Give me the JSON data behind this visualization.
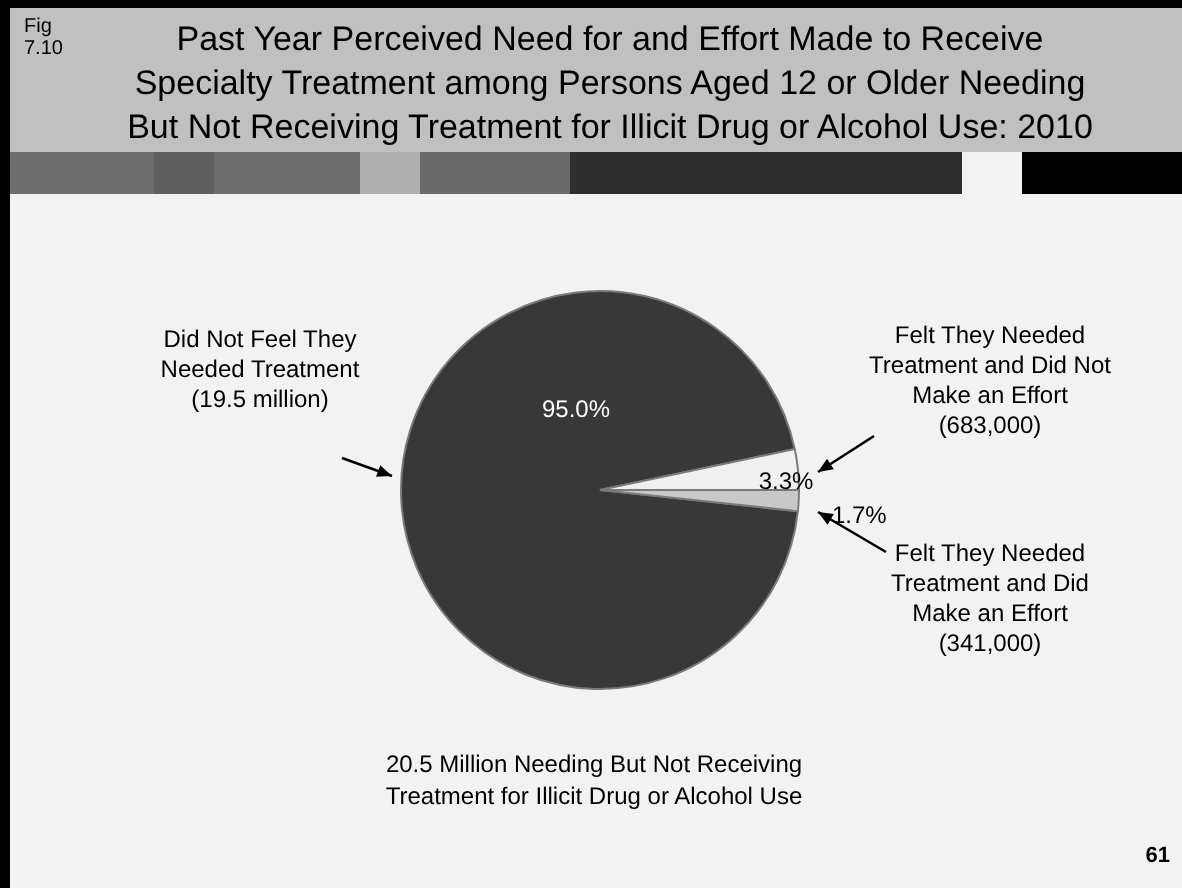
{
  "chart_data": {
    "type": "pie",
    "title": "Past Year Perceived Need for and Effort Made to Receive Specialty Treatment among Persons Aged 12 or Older Needing But Not Receiving Treatment for Illicit Drug or Alcohol Use: 2010",
    "categories": [
      "Did Not Feel They Needed Treatment (19.5 million)",
      "Felt They Needed Treatment and Did Not Make an Effort (683,000)",
      "Felt They Needed Treatment and Did Make an Effort (341,000)"
    ],
    "values": [
      95.0,
      3.3,
      1.7
    ],
    "colors": [
      "#383838",
      "#f0f0f0",
      "#c8c8c8"
    ],
    "value_labels": [
      "95.0%",
      "3.3%",
      "1.7%"
    ],
    "legend": false,
    "annotations": [
      "Fig 7.10",
      "20.5 Million Needing But Not Receiving Treatment for Illicit Drug or Alcohol Use",
      "61"
    ]
  }
}
